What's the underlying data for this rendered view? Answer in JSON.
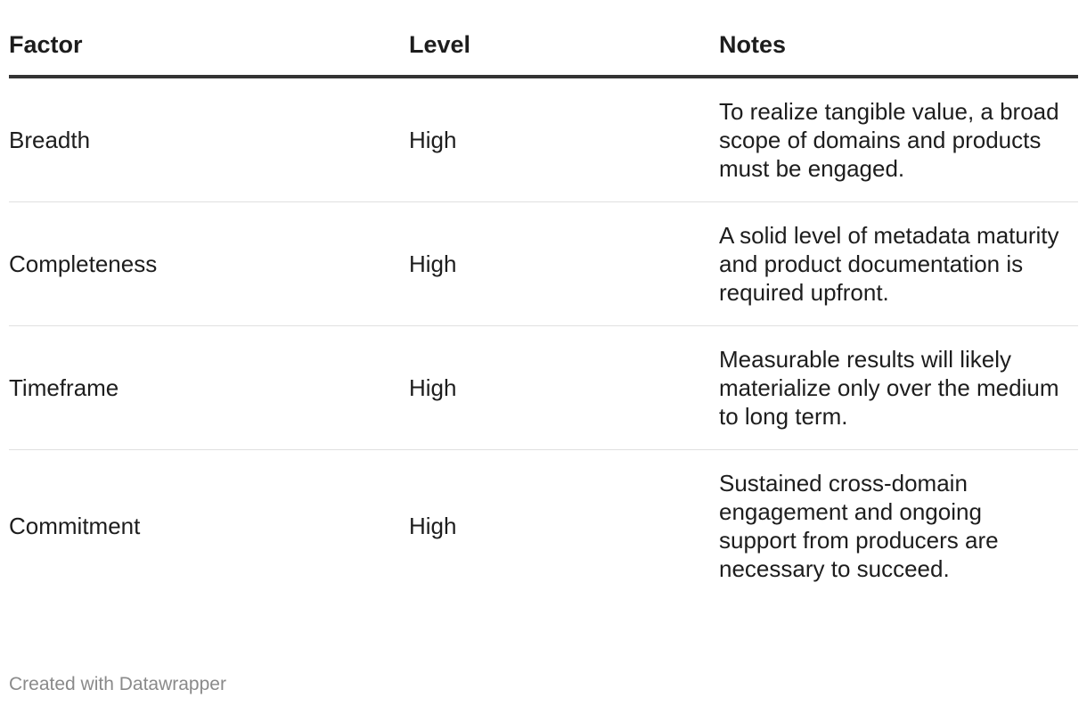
{
  "chart_data": {
    "type": "table",
    "columns": [
      "Factor",
      "Level",
      "Notes"
    ],
    "rows": [
      [
        "Breadth",
        "High",
        "To realize tangible value, a broad scope of domains and products must be engaged."
      ],
      [
        "Completeness",
        "High",
        "A solid level of metadata maturity and product documentation is required upfront."
      ],
      [
        "Timeframe",
        "High",
        "Measurable results will likely materialize only over the medium to long term."
      ],
      [
        "Commitment",
        "High",
        "Sustained cross-domain engagement and ongoing support from producers are necessary to succeed."
      ]
    ]
  },
  "footer": {
    "credit": "Created with Datawrapper"
  }
}
